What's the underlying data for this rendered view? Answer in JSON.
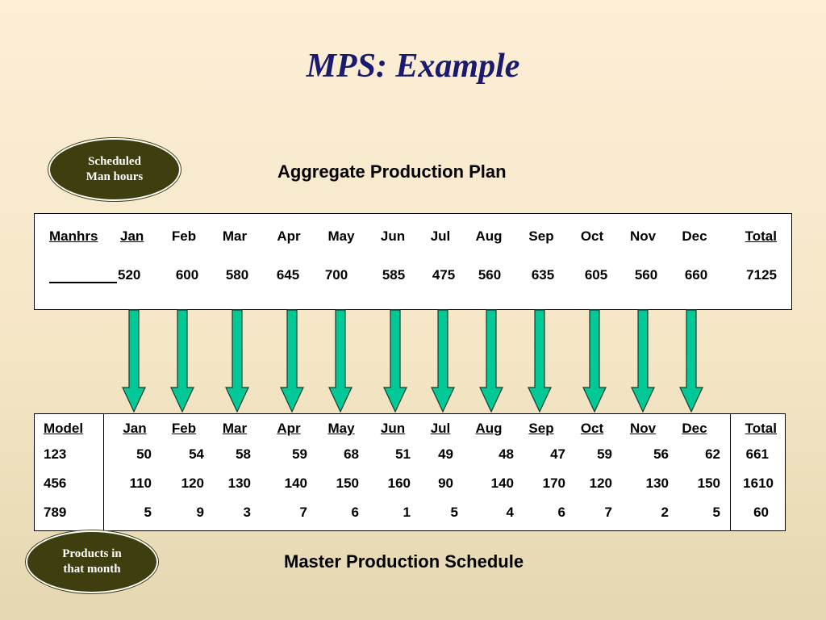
{
  "title": "MPS: Example",
  "ovals": {
    "scheduled": [
      "Scheduled",
      "Man hours"
    ],
    "products": [
      "Products in",
      "that month"
    ]
  },
  "aggregate_plan": {
    "heading": "Aggregate Production Plan",
    "row_label": "Manhrs",
    "months": [
      "Jan",
      "Feb",
      "Mar",
      "Apr",
      "May",
      "Jun",
      "Jul",
      "Aug",
      "Sep",
      "Oct",
      "Nov",
      "Dec"
    ],
    "total_label": "Total",
    "values": [
      "520",
      "600",
      "580",
      "645",
      "700",
      "585",
      "475",
      "560",
      "635",
      "605",
      "560",
      "660"
    ],
    "total": "7125"
  },
  "master_schedule": {
    "heading": "Master Production Schedule",
    "model_label": "Model",
    "months": [
      "Jan",
      "Feb",
      "Mar",
      "Apr",
      "May",
      "Jun",
      "Jul",
      "Aug",
      "Sep",
      "Oct",
      "Nov",
      "Dec"
    ],
    "total_label": "Total",
    "rows": [
      {
        "model": "123",
        "values": [
          "50",
          "54",
          "58",
          "59",
          "68",
          "51",
          "49",
          "48",
          "47",
          "59",
          "56",
          "62"
        ],
        "total": "661"
      },
      {
        "model": "456",
        "values": [
          "110",
          "120",
          "130",
          "140",
          "150",
          "160",
          "90",
          "140",
          "170",
          "120",
          "130",
          "150"
        ],
        "total": "1610"
      },
      {
        "model": "789",
        "values": [
          "5",
          "9",
          "3",
          "7",
          "6",
          "1",
          "5",
          "4",
          "6",
          "7",
          "2",
          "5"
        ],
        "total": "60"
      }
    ]
  },
  "colors": {
    "arrow_fill": "#00c896",
    "title": "#1a1a6e",
    "oval_fill": "#3e3e0f"
  }
}
